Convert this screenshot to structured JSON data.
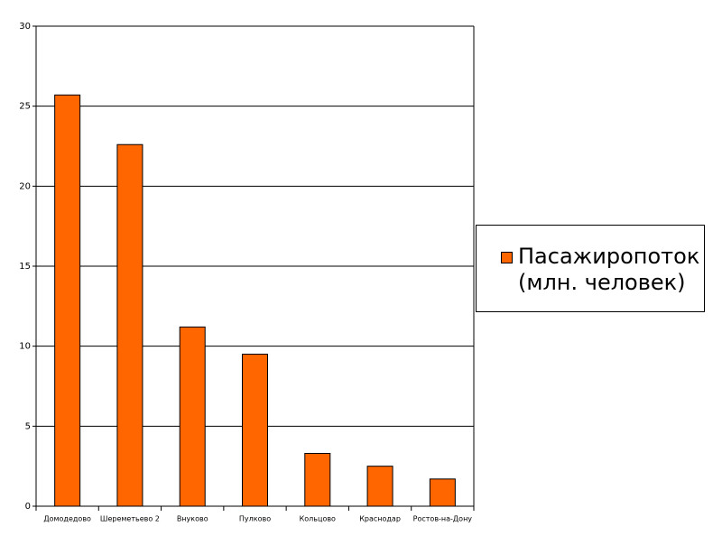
{
  "chart_data": {
    "type": "bar",
    "categories": [
      "Домодедово",
      "Шереметьево 2",
      "Внуково",
      "Пулково",
      "Кольцово",
      "Краснодар",
      "Ростов-на-Дону"
    ],
    "series": [
      {
        "name": "Пасажиропоток (млн. человек)",
        "color": "#ff6600",
        "values": [
          25.7,
          22.6,
          11.2,
          9.5,
          3.3,
          2.5,
          1.7
        ]
      }
    ],
    "ylim": [
      0,
      30
    ],
    "yticks": [
      0,
      5,
      10,
      15,
      20,
      25,
      30
    ],
    "grid": true,
    "legend": "right"
  }
}
